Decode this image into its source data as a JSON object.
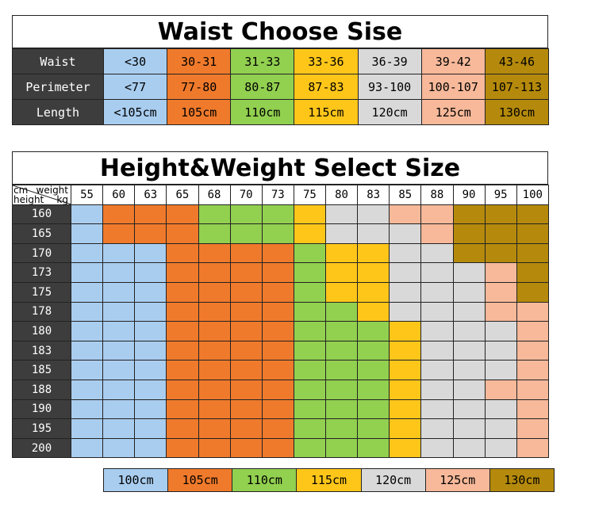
{
  "colors": {
    "dark": "#3d3d3d",
    "blue": "#a9cdef",
    "orange": "#f07a2b",
    "green": "#92d050",
    "yellow": "#ffc61a",
    "grey": "#d9d9d9",
    "peach": "#f7b99a",
    "gold": "#b58a0c",
    "white": "#ffffff"
  },
  "waist_table": {
    "title": "Waist Choose Sise",
    "rows": [
      {
        "label": "Waist",
        "cells": [
          "<30",
          "30-31",
          "31-33",
          "33-36",
          "36-39",
          "39-42",
          "43-46"
        ]
      },
      {
        "label": "Perimeter",
        "cells": [
          "<77",
          "77-80",
          "80-87",
          "87-83",
          "93-100",
          "100-107",
          "107-113"
        ]
      },
      {
        "label": "Length",
        "cells": [
          "<105cm",
          "105cm",
          "110cm",
          "115cm",
          "120cm",
          "125cm",
          "130cm"
        ]
      }
    ],
    "column_colors": [
      "blue",
      "orange",
      "green",
      "yellow",
      "grey",
      "peach",
      "gold"
    ]
  },
  "hw_table": {
    "title": "Height&Weight Select Size",
    "corner": {
      "cm": "cm",
      "height": "height",
      "weight": "weight",
      "kg": "kg"
    },
    "weights": [
      "55",
      "60",
      "63",
      "65",
      "68",
      "70",
      "73",
      "75",
      "80",
      "83",
      "85",
      "88",
      "90",
      "95",
      "100"
    ],
    "heights": [
      "160",
      "165",
      "170",
      "173",
      "175",
      "178",
      "180",
      "183",
      "185",
      "188",
      "190",
      "195",
      "200"
    ],
    "legend_keys": {
      "B": "blue",
      "O": "orange",
      "G": "green",
      "Y": "yellow",
      "R": "grey",
      "P": "peach",
      "D": "gold",
      "W": "white"
    },
    "grid": [
      "BOOOGGGYRRPPDDD",
      "BOOOGGGYRRRPDDD",
      "BBBOOOOGYYRRDDD",
      "BBBOOOOGYYRRRPD",
      "BBBOOOOGYYRRRPD",
      "BBBOOOOGGYRRRPP",
      "BBBOOOOGGGYRRRP",
      "BBBOOOOGGGYRRRP",
      "BBBOOOOGGGYRRRP",
      "BBBOOOOGGGYRRPP",
      "BBBOOOOGGGYRRRP",
      "BBBOOOOGGGYRRRP",
      "BBBOOOOGGGYRRRP"
    ]
  },
  "legend": [
    {
      "label": "100cm",
      "color": "blue"
    },
    {
      "label": "105cm",
      "color": "orange"
    },
    {
      "label": "110cm",
      "color": "green"
    },
    {
      "label": "115cm",
      "color": "yellow"
    },
    {
      "label": "120cm",
      "color": "grey"
    },
    {
      "label": "125cm",
      "color": "peach"
    },
    {
      "label": "130cm",
      "color": "gold"
    }
  ]
}
